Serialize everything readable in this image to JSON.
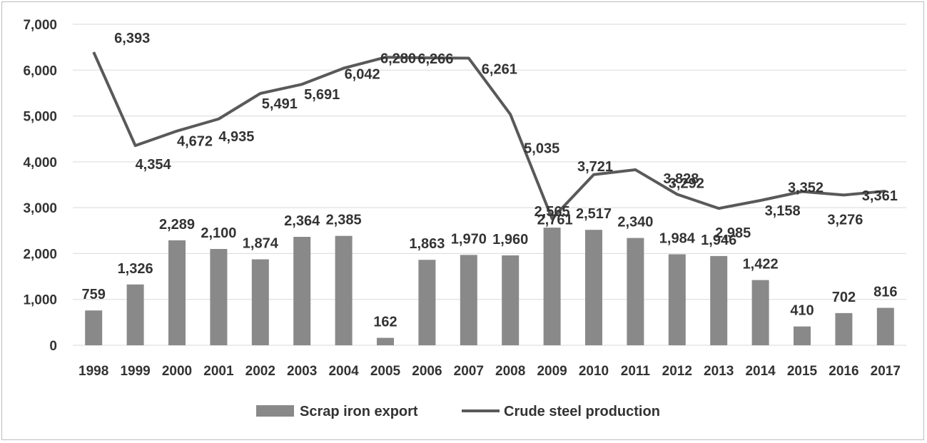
{
  "chart_data": {
    "type": "bar+line",
    "title": "",
    "xlabel": "",
    "ylabel": "",
    "ylim": [
      0,
      7000
    ],
    "yticks": [
      "0",
      "1,000",
      "2,000",
      "3,000",
      "4,000",
      "5,000",
      "6,000",
      "7,000"
    ],
    "yticks_values": [
      0,
      1000,
      2000,
      3000,
      4000,
      5000,
      6000,
      7000
    ],
    "grid": true,
    "legend_position": "bottom",
    "categories": [
      "1998",
      "1999",
      "2000",
      "2001",
      "2002",
      "2003",
      "2004",
      "2005",
      "2006",
      "2007",
      "2008",
      "2009",
      "2010",
      "2011",
      "2012",
      "2013",
      "2014",
      "2015",
      "2016",
      "2017"
    ],
    "series": [
      {
        "name": "Scrap iron export",
        "kind": "bar",
        "color": "#898989",
        "values": [
          759,
          1326,
          2289,
          2100,
          1874,
          2364,
          2385,
          162,
          1863,
          1970,
          1960,
          2565,
          2517,
          2340,
          1984,
          1946,
          1422,
          410,
          702,
          816
        ],
        "labels": [
          "759",
          "1,326",
          "2,289",
          "2,100",
          "1,874",
          "2,364",
          "2,385",
          "162",
          "1,863",
          "1,970",
          "1,960",
          "2,565",
          "2,517",
          "2,340",
          "1,984",
          "1,946",
          "1,422",
          "410",
          "702",
          "816"
        ]
      },
      {
        "name": "Crude steel production",
        "kind": "line",
        "color": "#595959",
        "values": [
          6393,
          4354,
          4672,
          4935,
          5491,
          5691,
          6042,
          6280,
          6266,
          6261,
          5035,
          2761,
          3721,
          3828,
          3292,
          2985,
          3158,
          3352,
          3276,
          3361
        ],
        "labels": [
          "6,393",
          "4,354",
          "4,672",
          "4,935",
          "5,491",
          "5,691",
          "6,042",
          "6,280",
          "6,266",
          "6,261",
          "5,035",
          "2,761",
          "3,721",
          "3,828",
          "3,292",
          "2,985",
          "3,158",
          "3,352",
          "3,276",
          "3,361"
        ]
      }
    ]
  }
}
